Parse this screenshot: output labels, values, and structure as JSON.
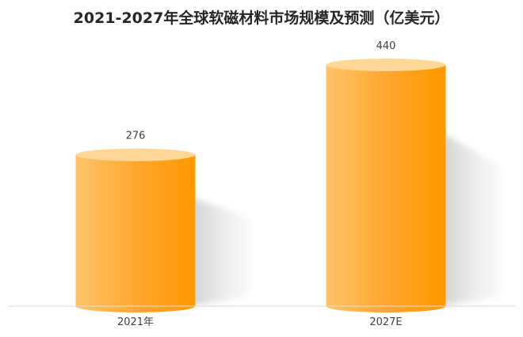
{
  "chart_data": {
    "type": "bar",
    "title": "2021-2027年全球软磁材料市场规模及预测（亿美元）",
    "categories": [
      "2021年",
      "2027E"
    ],
    "values": [
      276,
      440
    ],
    "data_labels": [
      "276",
      "440"
    ],
    "ylim": [
      0,
      500
    ],
    "grid": false,
    "legend": "none",
    "bar_style": "3d-cylinder",
    "colors": {
      "bar_light": "#ffc46a",
      "bar_dark": "#ff9900",
      "bar_top": "#ffd796",
      "shadow": "#d8d8d8",
      "axis_line": "#d9d9d9",
      "text": "#404040",
      "title": "#262626"
    }
  }
}
